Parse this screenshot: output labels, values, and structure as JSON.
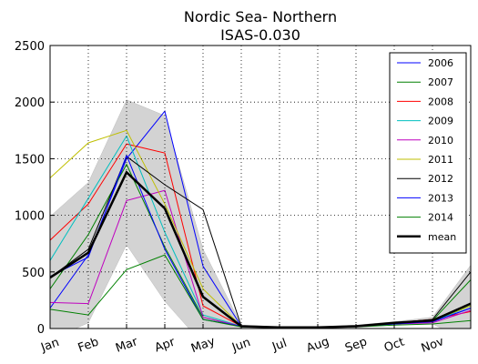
{
  "chart_data": {
    "type": "line",
    "title": "Nordic Sea- Northern",
    "subtitle": "ISAS-0.030",
    "categories": [
      "Jan",
      "Feb",
      "Mar",
      "Apr",
      "May",
      "Jun",
      "Jul",
      "Aug",
      "Sep",
      "Oct",
      "Nov",
      null
    ],
    "ylim": [
      0,
      2500
    ],
    "yticks": [
      0,
      500,
      1000,
      1500,
      2000,
      2500
    ],
    "grid": true,
    "legend": "upper right",
    "band": {
      "color": "#d3d3d3",
      "upper": [
        990,
        1290,
        2020,
        1880,
        700,
        30,
        15,
        15,
        30,
        60,
        100,
        560
      ],
      "lower": [
        -100,
        50,
        740,
        240,
        -140,
        10,
        5,
        5,
        10,
        30,
        40,
        -120
      ]
    },
    "series": [
      {
        "name": "2006",
        "color": "#0000ff",
        "values": [
          180,
          650,
          1500,
          1920,
          550,
          20,
          10,
          10,
          20,
          40,
          60,
          180
        ]
      },
      {
        "name": "2007",
        "color": "#008000",
        "values": [
          350,
          830,
          1450,
          720,
          100,
          15,
          10,
          10,
          20,
          50,
          70,
          430
        ]
      },
      {
        "name": "2008",
        "color": "#ff0000",
        "values": [
          780,
          1100,
          1630,
          1550,
          200,
          20,
          10,
          10,
          20,
          50,
          80,
          150
        ]
      },
      {
        "name": "2009",
        "color": "#00bfbf",
        "values": [
          600,
          1150,
          1700,
          850,
          120,
          20,
          10,
          10,
          20,
          40,
          60,
          200
        ]
      },
      {
        "name": "2010",
        "color": "#bf00bf",
        "values": [
          230,
          220,
          1130,
          1220,
          100,
          20,
          10,
          10,
          20,
          40,
          50,
          160
        ]
      },
      {
        "name": "2011",
        "color": "#bfbf00",
        "values": [
          1330,
          1640,
          1750,
          1100,
          350,
          20,
          10,
          10,
          20,
          50,
          70,
          200
        ]
      },
      {
        "name": "2012",
        "color": "#000000",
        "values": [
          450,
          700,
          1520,
          1270,
          1050,
          20,
          10,
          10,
          20,
          50,
          80,
          500
        ]
      },
      {
        "name": "2013",
        "color": "#0000ff",
        "values": [
          460,
          630,
          1530,
          700,
          80,
          20,
          10,
          10,
          20,
          40,
          60,
          180
        ]
      },
      {
        "name": "2014",
        "color": "#008000",
        "values": [
          170,
          120,
          520,
          650,
          80,
          15,
          10,
          10,
          15,
          30,
          40,
          70
        ]
      },
      {
        "name": "mean",
        "color": "#000000",
        "width": 2.5,
        "values": [
          450,
          670,
          1380,
          1060,
          280,
          20,
          10,
          10,
          20,
          50,
          70,
          220
        ]
      }
    ]
  }
}
